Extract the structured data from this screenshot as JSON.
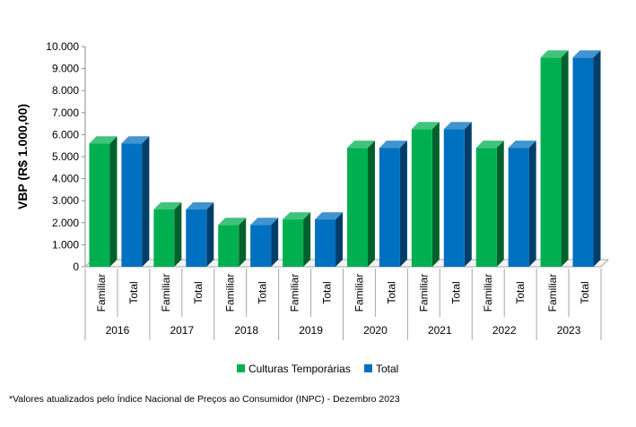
{
  "chart_data": {
    "type": "bar",
    "ylabel": "VBP (R$ 1.000,00)",
    "ylim": [
      0,
      10000
    ],
    "yticks": [
      0,
      1000,
      2000,
      3000,
      4000,
      5000,
      6000,
      7000,
      8000,
      9000,
      10000
    ],
    "ytick_labels": [
      "0",
      "1.000",
      "2.000",
      "3.000",
      "4.000",
      "5.000",
      "6.000",
      "7.000",
      "8.000",
      "9.000",
      "10.000"
    ],
    "years": [
      "2016",
      "2017",
      "2018",
      "2019",
      "2020",
      "2021",
      "2022",
      "2023"
    ],
    "subcategories": [
      "Familiar",
      "Total"
    ],
    "series": [
      {
        "name": "Culturas Temporárias",
        "color": "#00b050",
        "values": [
          5600,
          2600,
          1900,
          2150,
          5400,
          6250,
          5400,
          9500
        ]
      },
      {
        "name": "Total",
        "color": "#0070c0",
        "values": [
          5600,
          2600,
          1900,
          2150,
          5400,
          6250,
          5400,
          9500
        ]
      }
    ],
    "legend_position": "bottom",
    "grid": false
  },
  "footnote": "*Valores atualizados pelo Índice Nacional de Preços ao Consumidor (INPC) - Dezembro 2023"
}
